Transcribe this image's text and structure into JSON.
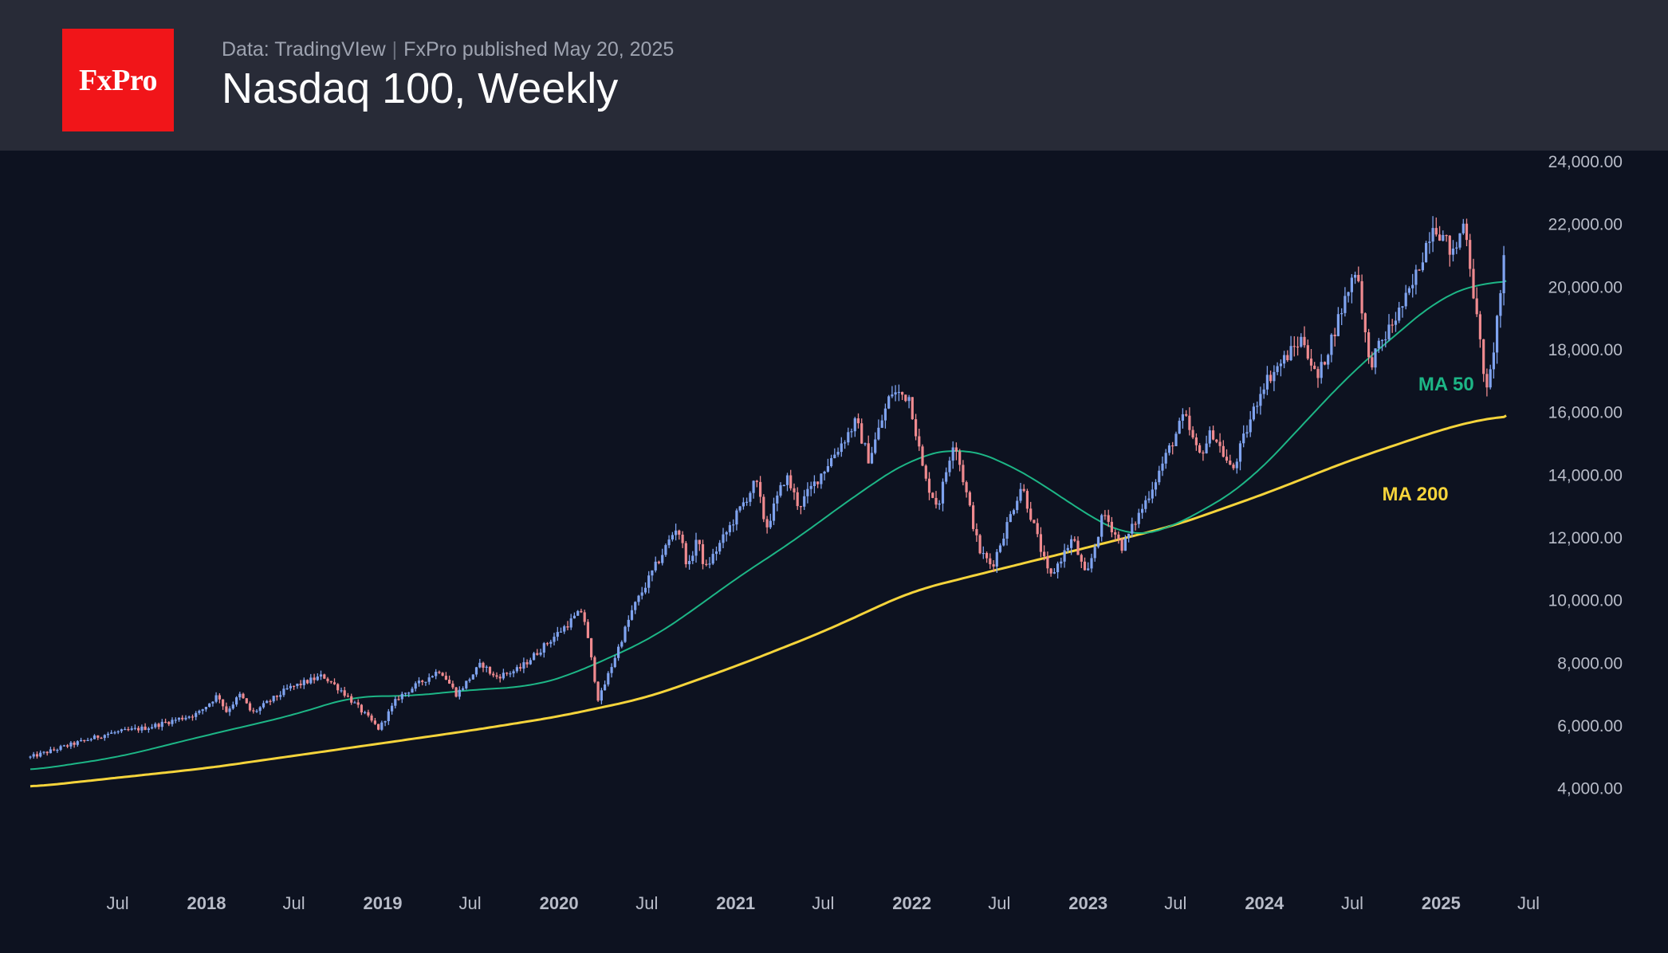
{
  "header": {
    "logo_text": "FxPro",
    "data_source": "Data: TradingVIew",
    "separator": "|",
    "published": "FxPro published May 20, 2025",
    "title": "Nasdaq 100, Weekly"
  },
  "colors": {
    "background": "#0d1220",
    "header_bg": "#282b37",
    "logo_bg": "#f11519",
    "candle_up": "#7fa3ef",
    "candle_down": "#ef8a8f",
    "ma50": "#1db686",
    "ma200": "#f5d43b"
  },
  "chart_data": {
    "type": "candlestick",
    "title": "Nasdaq 100, Weekly",
    "x_range": [
      "2017-01-01",
      "2025-07-20"
    ],
    "y_range": [
      3000,
      24000
    ],
    "y_ticks": [
      {
        "value": 24000,
        "label": "24,000.00"
      },
      {
        "value": 22000,
        "label": "22,000.00"
      },
      {
        "value": 20000,
        "label": "20,000.00"
      },
      {
        "value": 18000,
        "label": "18,000.00"
      },
      {
        "value": 16000,
        "label": "16,000.00"
      },
      {
        "value": 14000,
        "label": "14,000.00"
      },
      {
        "value": 12000,
        "label": "12,000.00"
      },
      {
        "value": 10000,
        "label": "10,000.00"
      },
      {
        "value": 8000,
        "label": "8,000.00"
      },
      {
        "value": 6000,
        "label": "6,000.00"
      },
      {
        "value": 4000,
        "label": "4,000.00"
      }
    ],
    "x_ticks": [
      {
        "date": "2017-07-01",
        "label": "Jul",
        "major": false
      },
      {
        "date": "2018-01-01",
        "label": "2018",
        "major": true
      },
      {
        "date": "2018-07-01",
        "label": "Jul",
        "major": false
      },
      {
        "date": "2019-01-01",
        "label": "2019",
        "major": true
      },
      {
        "date": "2019-07-01",
        "label": "Jul",
        "major": false
      },
      {
        "date": "2020-01-01",
        "label": "2020",
        "major": true
      },
      {
        "date": "2020-07-01",
        "label": "Jul",
        "major": false
      },
      {
        "date": "2021-01-01",
        "label": "2021",
        "major": true
      },
      {
        "date": "2021-07-01",
        "label": "Jul",
        "major": false
      },
      {
        "date": "2022-01-01",
        "label": "2022",
        "major": true
      },
      {
        "date": "2022-07-01",
        "label": "Jul",
        "major": false
      },
      {
        "date": "2023-01-01",
        "label": "2023",
        "major": true
      },
      {
        "date": "2023-07-01",
        "label": "Jul",
        "major": false
      },
      {
        "date": "2024-01-01",
        "label": "2024",
        "major": true
      },
      {
        "date": "2024-07-01",
        "label": "Jul",
        "major": false
      },
      {
        "date": "2025-01-01",
        "label": "2025",
        "major": true
      },
      {
        "date": "2025-07-01",
        "label": "Jul",
        "major": false
      }
    ],
    "price_close_path": [
      [
        "2017-01-01",
        5000
      ],
      [
        "2017-03-15",
        5350
      ],
      [
        "2017-06-10",
        5750
      ],
      [
        "2017-09-01",
        5950
      ],
      [
        "2017-12-15",
        6400
      ],
      [
        "2018-01-25",
        7000
      ],
      [
        "2018-02-10",
        6450
      ],
      [
        "2018-03-12",
        7000
      ],
      [
        "2018-04-05",
        6400
      ],
      [
        "2018-06-20",
        7200
      ],
      [
        "2018-08-30",
        7600
      ],
      [
        "2018-10-10",
        7100
      ],
      [
        "2018-12-24",
        5900
      ],
      [
        "2019-02-01",
        6900
      ],
      [
        "2019-04-30",
        7800
      ],
      [
        "2019-06-03",
        7000
      ],
      [
        "2019-07-25",
        8000
      ],
      [
        "2019-08-20",
        7550
      ],
      [
        "2019-10-10",
        7800
      ],
      [
        "2020-02-19",
        9700
      ],
      [
        "2020-03-23",
        6800
      ],
      [
        "2020-06-01",
        9700
      ],
      [
        "2020-09-02",
        12400
      ],
      [
        "2020-09-25",
        11000
      ],
      [
        "2020-10-12",
        12000
      ],
      [
        "2020-10-30",
        11000
      ],
      [
        "2021-02-12",
        13800
      ],
      [
        "2021-03-05",
        12300
      ],
      [
        "2021-04-15",
        14000
      ],
      [
        "2021-05-12",
        13000
      ],
      [
        "2021-09-07",
        15700
      ],
      [
        "2021-10-04",
        14500
      ],
      [
        "2021-11-19",
        16650
      ],
      [
        "2021-12-27",
        16500
      ],
      [
        "2022-01-27",
        13900
      ],
      [
        "2022-02-24",
        13000
      ],
      [
        "2022-03-29",
        15200
      ],
      [
        "2022-05-20",
        11600
      ],
      [
        "2022-06-16",
        11100
      ],
      [
        "2022-08-16",
        13700
      ],
      [
        "2022-10-13",
        10700
      ],
      [
        "2022-11-30",
        12000
      ],
      [
        "2022-12-28",
        10700
      ],
      [
        "2023-02-02",
        12800
      ],
      [
        "2023-03-13",
        11700
      ],
      [
        "2023-05-01",
        13200
      ],
      [
        "2023-07-19",
        15900
      ],
      [
        "2023-08-18",
        14600
      ],
      [
        "2023-09-15",
        15400
      ],
      [
        "2023-10-26",
        14100
      ],
      [
        "2023-12-29",
        16900
      ],
      [
        "2024-03-21",
        18400
      ],
      [
        "2024-04-19",
        17000
      ],
      [
        "2024-07-10",
        20700
      ],
      [
        "2024-08-05",
        17500
      ],
      [
        "2024-09-06",
        18400
      ],
      [
        "2024-10-31",
        19900
      ],
      [
        "2024-12-16",
        22100
      ],
      [
        "2025-01-27",
        21000
      ],
      [
        "2025-02-19",
        22200
      ],
      [
        "2025-03-13",
        19300
      ],
      [
        "2025-04-07",
        16500
      ],
      [
        "2025-04-21",
        18200
      ],
      [
        "2025-05-05",
        20000
      ],
      [
        "2025-05-16",
        21400
      ]
    ],
    "ma50": [
      [
        "2017-01-01",
        4580
      ],
      [
        "2017-07-01",
        5000
      ],
      [
        "2018-01-01",
        5700
      ],
      [
        "2018-07-01",
        6350
      ],
      [
        "2018-11-01",
        6950
      ],
      [
        "2019-03-01",
        6950
      ],
      [
        "2019-07-01",
        7150
      ],
      [
        "2019-11-01",
        7250
      ],
      [
        "2020-02-01",
        7650
      ],
      [
        "2020-04-01",
        8100
      ],
      [
        "2020-07-01",
        8700
      ],
      [
        "2020-10-01",
        9650
      ],
      [
        "2021-01-01",
        10700
      ],
      [
        "2021-05-01",
        11900
      ],
      [
        "2021-09-01",
        13300
      ],
      [
        "2022-01-01",
        14550
      ],
      [
        "2022-04-15",
        14900
      ],
      [
        "2022-07-01",
        14500
      ],
      [
        "2022-10-01",
        13700
      ],
      [
        "2023-01-01",
        12700
      ],
      [
        "2023-04-01",
        12000
      ],
      [
        "2023-06-01",
        12200
      ],
      [
        "2023-09-01",
        12900
      ],
      [
        "2023-12-01",
        13800
      ],
      [
        "2024-04-01",
        15800
      ],
      [
        "2024-07-01",
        17300
      ],
      [
        "2024-10-01",
        18500
      ],
      [
        "2025-01-01",
        19700
      ],
      [
        "2025-03-15",
        20100
      ],
      [
        "2025-05-16",
        20200
      ]
    ],
    "ma200": [
      [
        "2017-01-01",
        4050
      ],
      [
        "2018-01-01",
        4650
      ],
      [
        "2019-01-01",
        5450
      ],
      [
        "2019-07-01",
        5850
      ],
      [
        "2020-01-01",
        6300
      ],
      [
        "2020-07-01",
        6900
      ],
      [
        "2021-01-01",
        7900
      ],
      [
        "2021-07-01",
        9000
      ],
      [
        "2022-01-01",
        10300
      ],
      [
        "2022-07-01",
        11000
      ],
      [
        "2023-01-01",
        11700
      ],
      [
        "2023-07-01",
        12400
      ],
      [
        "2024-01-01",
        13400
      ],
      [
        "2024-07-01",
        14500
      ],
      [
        "2025-01-01",
        15450
      ],
      [
        "2025-03-15",
        15750
      ],
      [
        "2025-05-16",
        15900
      ]
    ],
    "series": [
      {
        "name": "MA 50",
        "label_at": [
          "2024-11-15",
          16700
        ]
      },
      {
        "name": "MA 200",
        "label_at": [
          "2024-09-01",
          13200
        ]
      }
    ],
    "grid": false,
    "legend": "none"
  }
}
